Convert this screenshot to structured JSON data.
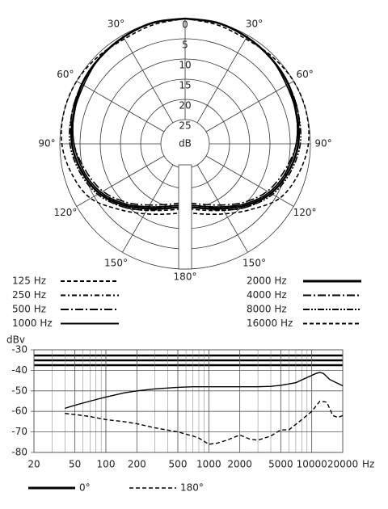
{
  "chart_data": [
    {
      "type": "polar",
      "r_label": "dB",
      "rlim": [
        0,
        25
      ],
      "rticks": [
        0,
        5,
        10,
        15,
        20,
        25
      ],
      "angle_ticks": [
        {
          "value": 30,
          "label": "30°"
        },
        {
          "value": 60,
          "label": "60°"
        },
        {
          "value": 90,
          "label": "90°"
        },
        {
          "value": 120,
          "label": "120°"
        },
        {
          "value": 150,
          "label": "150°"
        },
        {
          "value": 180,
          "label": "180°"
        }
      ],
      "angles": [
        0,
        15,
        30,
        45,
        60,
        75,
        90,
        105,
        120,
        135,
        150,
        165,
        180
      ],
      "series": [
        {
          "name": "125 Hz",
          "color": "#000000",
          "style": "dashed",
          "values": [
            0,
            0,
            0.5,
            1,
            1.5,
            2,
            3,
            4.5,
            6.5,
            9,
            12,
            14,
            15
          ]
        },
        {
          "name": "250 Hz",
          "color": "#000000",
          "style": "dash-dot",
          "values": [
            0,
            0,
            0.5,
            1,
            1.5,
            2.5,
            3.5,
            5,
            7,
            10,
            13,
            15,
            16
          ]
        },
        {
          "name": "500 Hz",
          "color": "#000000",
          "style": "long-dash-dot",
          "values": [
            0,
            0,
            0.5,
            1,
            1.5,
            2.5,
            3.5,
            5.5,
            7.5,
            10.5,
            13.5,
            15.5,
            16.5
          ]
        },
        {
          "name": "1000 Hz",
          "color": "#000000",
          "style": "solid",
          "values": [
            0,
            0,
            0.5,
            1,
            2,
            2.5,
            3.5,
            5,
            7,
            10,
            13,
            15,
            16
          ]
        },
        {
          "name": "2000 Hz",
          "color": "#000000",
          "style": "thick",
          "values": [
            0,
            0,
            0.5,
            1,
            1.5,
            2.5,
            3,
            4.5,
            6.5,
            9.5,
            12.5,
            14.5,
            15.5
          ]
        },
        {
          "name": "4000 Hz",
          "color": "#000000",
          "style": "long-dash-dot",
          "values": [
            0,
            0,
            0.5,
            1,
            1.5,
            2,
            3,
            4.5,
            6.5,
            9.5,
            12.5,
            15,
            16
          ]
        },
        {
          "name": "8000 Hz",
          "color": "#000000",
          "style": "dash-dot-dot",
          "values": [
            0,
            0,
            0.5,
            1,
            1.5,
            2,
            2.5,
            4,
            6,
            9,
            12,
            14.5,
            15.5
          ]
        },
        {
          "name": "16000 Hz",
          "color": "#000000",
          "style": "dashed",
          "values": [
            0,
            0.5,
            1,
            0.5,
            0,
            0,
            0.5,
            2,
            4,
            8,
            11,
            13,
            14
          ]
        }
      ]
    },
    {
      "type": "line",
      "y_label": "dBv",
      "x_label": "Hz",
      "xscale": "log",
      "xlim": [
        20,
        20000
      ],
      "xticks": [
        20,
        50,
        100,
        200,
        500,
        1000,
        2000,
        5000,
        10000,
        20000
      ],
      "ylim": [
        -80,
        -30
      ],
      "yticks": [
        -30,
        -40,
        -50,
        -60,
        -70,
        -80
      ],
      "grid": true,
      "series": [
        {
          "name": "0°",
          "color": "#000000",
          "style": "solid",
          "x": [
            40,
            50,
            70,
            100,
            150,
            200,
            300,
            500,
            700,
            1000,
            1500,
            2000,
            3000,
            4000,
            5000,
            7000,
            9000,
            11000,
            12000,
            13000,
            15000,
            20000
          ],
          "values": [
            -58.5,
            -57,
            -55,
            -53,
            -51,
            -50,
            -49,
            -48.3,
            -48,
            -48,
            -48,
            -48,
            -48,
            -47.8,
            -47.3,
            -46,
            -43.5,
            -41.5,
            -41,
            -41.5,
            -44.5,
            -47.5
          ]
        },
        {
          "name": "180°",
          "color": "#000000",
          "style": "dashed",
          "x": [
            40,
            50,
            70,
            100,
            150,
            200,
            300,
            500,
            700,
            800,
            1000,
            1200,
            1500,
            2000,
            2500,
            3000,
            4000,
            5000,
            6000,
            8000,
            10000,
            12000,
            14000,
            16000,
            18000,
            20000
          ],
          "values": [
            -61,
            -61.5,
            -62.5,
            -64,
            -65,
            -66,
            -68,
            -70,
            -72,
            -73,
            -76,
            -75.5,
            -74,
            -71.5,
            -73.5,
            -74,
            -72,
            -69,
            -69,
            -64,
            -60,
            -55,
            -55.5,
            -62,
            -63,
            -62
          ]
        }
      ]
    }
  ]
}
